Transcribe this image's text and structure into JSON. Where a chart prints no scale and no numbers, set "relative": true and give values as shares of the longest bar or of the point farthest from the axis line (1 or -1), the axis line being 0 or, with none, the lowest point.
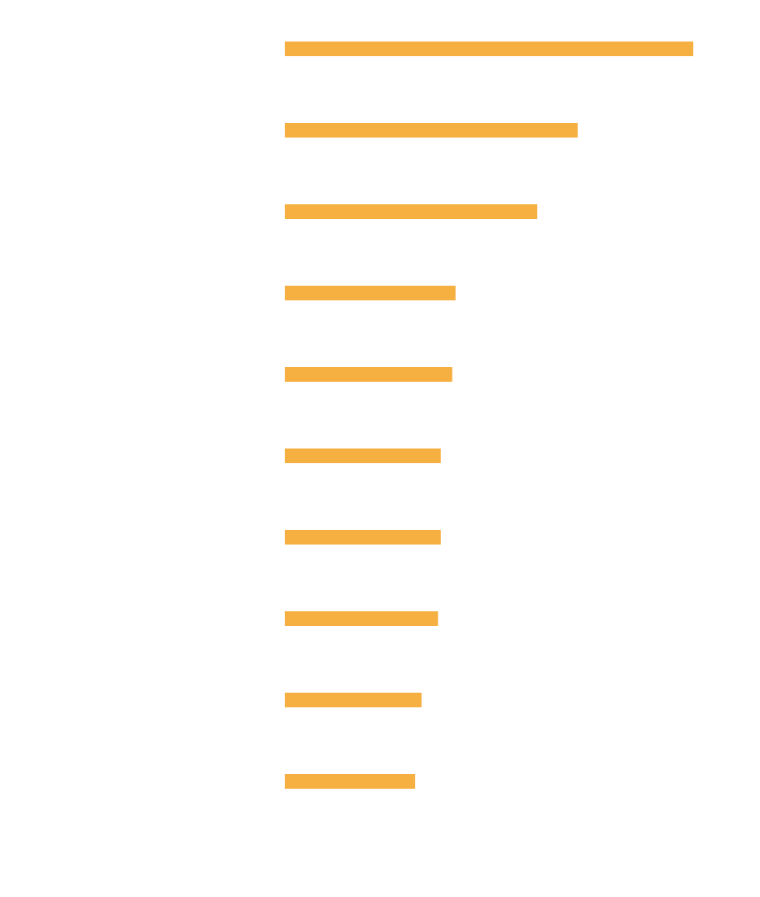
{
  "chart_data": {
    "type": "bar",
    "orientation": "horizontal",
    "relative": true,
    "categories": [
      null,
      null,
      null,
      null,
      null,
      null,
      null,
      null,
      null,
      null
    ],
    "values": [
      1,
      0.717,
      0.618,
      0.418,
      0.41,
      0.382,
      0.382,
      0.375,
      0.335,
      0.319
    ],
    "color": "#f6b042"
  }
}
